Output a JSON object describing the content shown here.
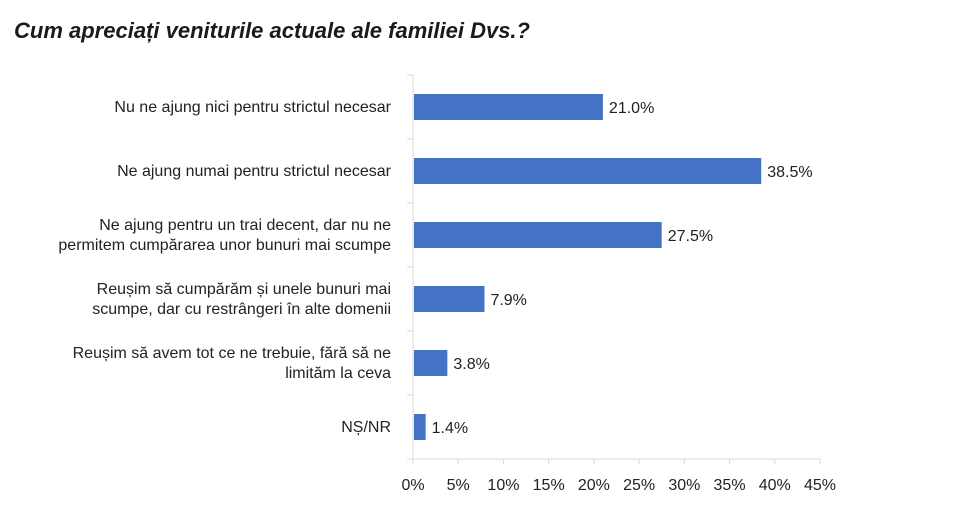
{
  "chart_data": {
    "type": "bar",
    "orientation": "horizontal",
    "title": "Cum apreciați veniturile actuale ale familiei Dvs.?",
    "categories": [
      [
        "Nu ne ajung nici pentru strictul necesar"
      ],
      [
        "Ne ajung numai pentru strictul necesar"
      ],
      [
        "Ne ajung pentru un trai decent, dar nu ne",
        "permitem cumpărarea unor bunuri mai scumpe"
      ],
      [
        "Reușim să cumpărăm și unele bunuri mai",
        "scumpe, dar cu restrângeri în alte domenii"
      ],
      [
        "Reușim să avem tot ce ne trebuie, fără să ne",
        "limităm la ceva"
      ],
      [
        "NȘ/NR"
      ]
    ],
    "values": [
      21.0,
      38.5,
      27.5,
      7.9,
      3.8,
      1.4
    ],
    "value_labels": [
      "21.0%",
      "38.5%",
      "27.5%",
      "7.9%",
      "3.8%",
      "1.4%"
    ],
    "xlim": [
      0,
      45
    ],
    "xticks": [
      0,
      5,
      10,
      15,
      20,
      25,
      30,
      35,
      40,
      45
    ],
    "xtick_labels": [
      "0%",
      "5%",
      "10%",
      "15%",
      "20%",
      "25%",
      "30%",
      "35%",
      "40%",
      "45%"
    ],
    "xlabel": "",
    "ylabel": "",
    "grid": false,
    "legend": "none",
    "bar_color": "#4472C4",
    "axis_color": "#D9D9D9"
  }
}
